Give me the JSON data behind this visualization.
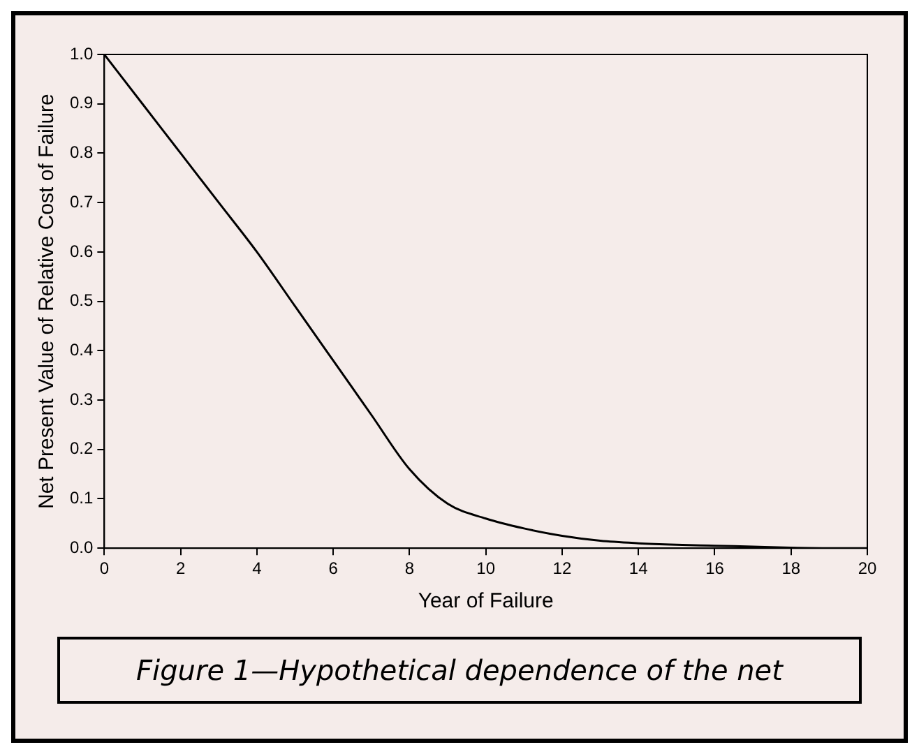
{
  "chart_data": {
    "type": "line",
    "xlabel": "Year of Failure",
    "ylabel": "Net Present Value of Relative Cost of Failure",
    "annotations": [
      "Figure 1—Hypothetical dependence of the net"
    ],
    "x": [
      0,
      1,
      2,
      3,
      4,
      5,
      6,
      7,
      8,
      9,
      10,
      11,
      12,
      13,
      14,
      15,
      16,
      17,
      18,
      19,
      20
    ],
    "series": [
      {
        "color": "#000000",
        "values": [
          1.0,
          0.9,
          0.8,
          0.7,
          0.6,
          0.49,
          0.38,
          0.27,
          0.16,
          0.09,
          0.06,
          0.04,
          0.025,
          0.015,
          0.01,
          0.007,
          0.005,
          0.003,
          0.001,
          0,
          0
        ]
      }
    ],
    "xlim": [
      0,
      20
    ],
    "xticks": [
      0,
      2,
      4,
      6,
      8,
      10,
      12,
      14,
      16,
      18,
      20
    ],
    "ylim": [
      0,
      1
    ],
    "yticks": [
      {
        "value": 0,
        "label": "0.0"
      },
      {
        "value": 0.1,
        "label": "0.1"
      },
      {
        "value": 0.2,
        "label": "0.2"
      },
      {
        "value": 0.3,
        "label": "0.3"
      },
      {
        "value": 0.4,
        "label": "0.4"
      },
      {
        "value": 0.5,
        "label": "0.5"
      },
      {
        "value": 0.6,
        "label": "0.6"
      },
      {
        "value": 0.7,
        "label": "0.7"
      },
      {
        "value": 0.8,
        "label": "0.8"
      },
      {
        "value": 0.9,
        "label": "0.9"
      },
      {
        "value": 1,
        "label": "1.0"
      }
    ],
    "grid": false,
    "legend": false,
    "marker": "none",
    "line_style": "solid"
  }
}
